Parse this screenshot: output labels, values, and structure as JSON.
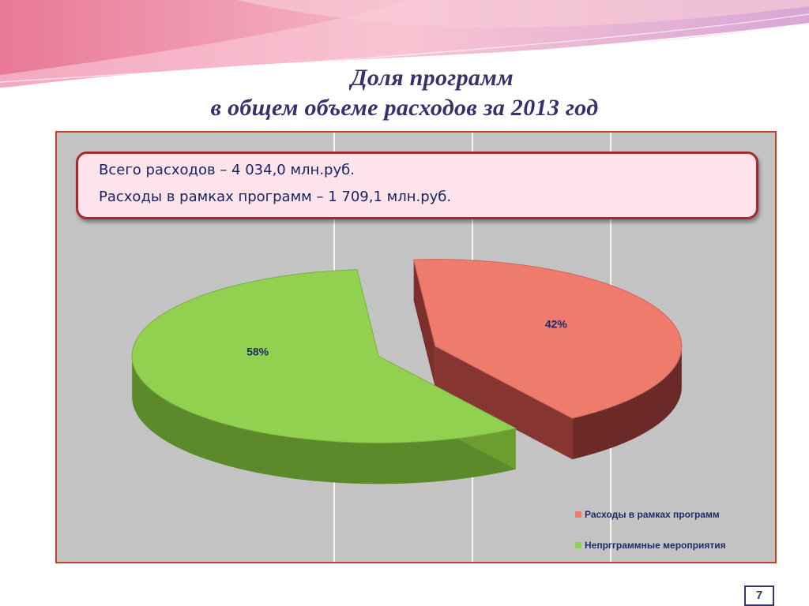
{
  "slide": {
    "title_line1": "Доля программ",
    "title_line2": "в общем объеме расходов за 2013 год",
    "page_number": "7"
  },
  "info": {
    "total": "Всего расходов – 4 034,0 млн.руб.",
    "programs": "Расходы в рамках программ – 1 709,1 млн.руб."
  },
  "colors": {
    "green_top": "#92d050",
    "green_side": "#5c8a2a",
    "red_top": "#ef7b6d",
    "red_side": "#6b2a27",
    "frame": "#c3432a",
    "title": "#3a2f6b"
  },
  "chart_data": {
    "type": "pie",
    "title": "",
    "slices": [
      {
        "name": "Расходы в рамках программ",
        "value": 42,
        "label": "42%",
        "color": "#ef7b6d"
      },
      {
        "name": "Непргграммные мероприятия",
        "value": 58,
        "label": "58%",
        "color": "#92d050"
      }
    ],
    "legend_position": "bottom-right",
    "grid": true
  }
}
